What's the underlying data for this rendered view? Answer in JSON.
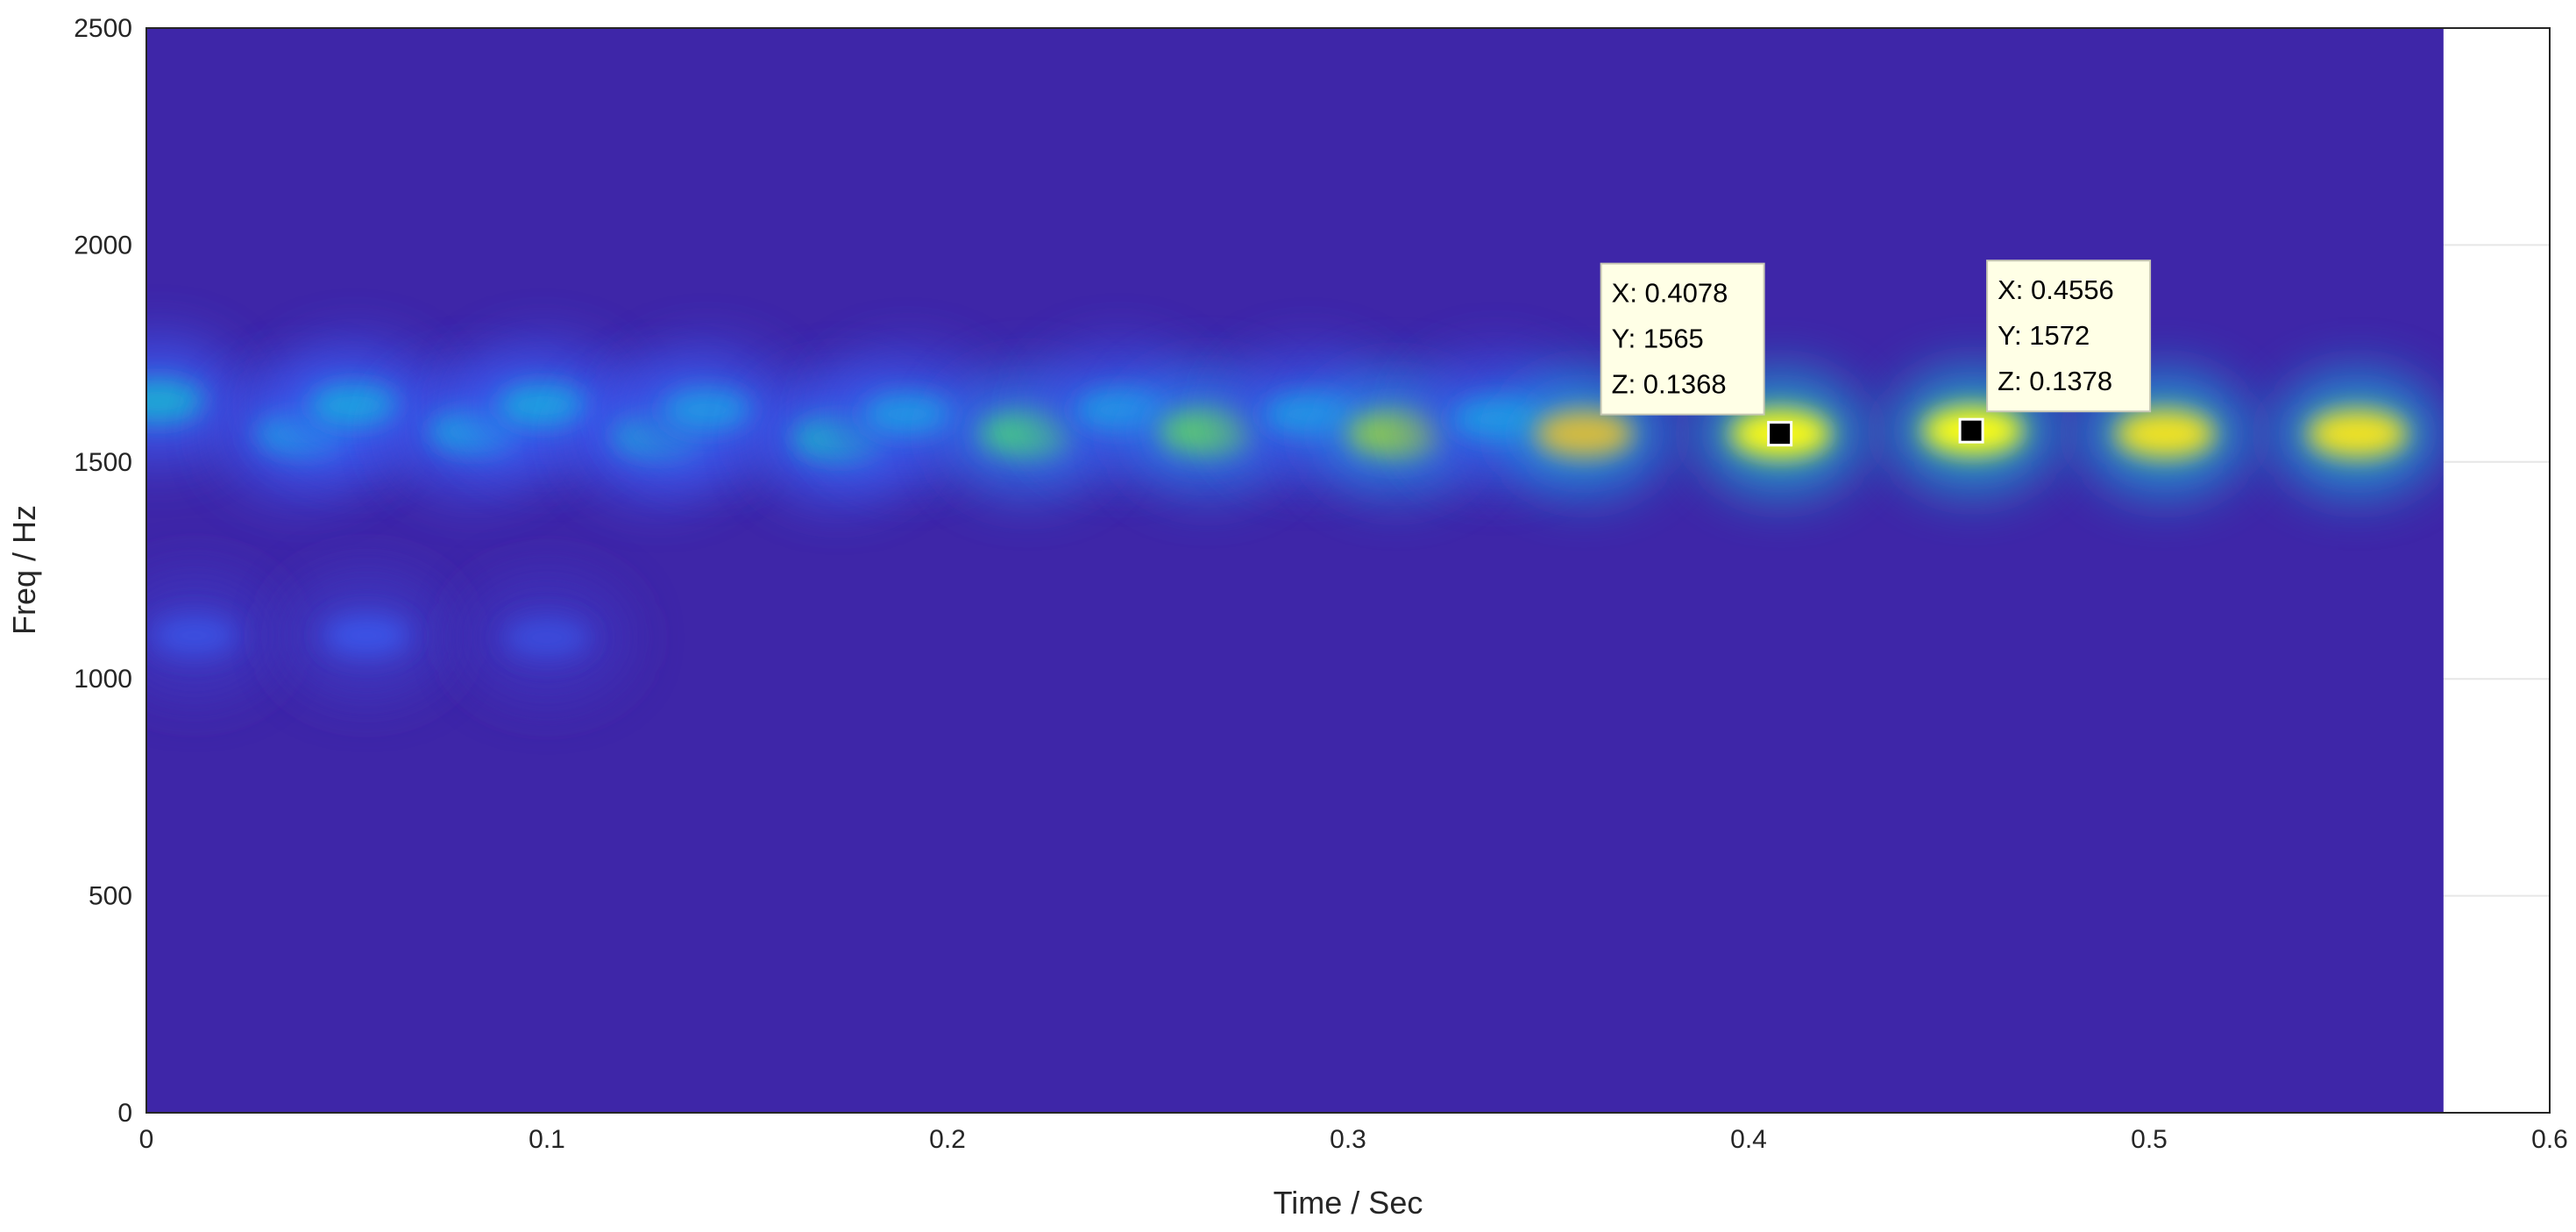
{
  "chart_data": {
    "type": "spectrogram",
    "xlabel": "Time / Sec",
    "ylabel": "Freq / Hz",
    "xlim": [
      0,
      0.6
    ],
    "ylim": [
      0,
      2500
    ],
    "xticks": [
      0,
      0.1,
      0.2,
      0.3,
      0.4,
      0.5,
      0.6
    ],
    "yticks": [
      0,
      500,
      1000,
      1500,
      2000,
      2500
    ],
    "grid": true,
    "background_color": "#3e26a8",
    "x_extent": [
      0,
      0.5735
    ],
    "peaks": {
      "x": [
        0.003,
        0.039,
        0.052,
        0.082,
        0.099,
        0.128,
        0.14,
        0.173,
        0.19,
        0.22,
        0.243,
        0.265,
        0.29,
        0.312,
        0.337,
        0.359,
        0.408,
        0.456,
        0.504,
        0.552,
        0.012,
        0.055,
        0.1
      ],
      "y": [
        1640,
        1565,
        1630,
        1570,
        1630,
        1560,
        1620,
        1555,
        1610,
        1565,
        1620,
        1570,
        1610,
        1565,
        1600,
        1565,
        1565,
        1572,
        1565,
        1565,
        1100,
        1100,
        1095
      ],
      "z": [
        0.06,
        0.055,
        0.055,
        0.055,
        0.055,
        0.06,
        0.05,
        0.065,
        0.05,
        0.085,
        0.05,
        0.09,
        0.05,
        0.1,
        0.05,
        0.115,
        0.1368,
        0.1378,
        0.13,
        0.13,
        0.02,
        0.022,
        0.018
      ]
    },
    "datatips": [
      {
        "x": 0.4078,
        "y": 1565,
        "z": 0.1368,
        "lines": [
          "X: 0.4078",
          "Y: 1565",
          "Z: 0.1368"
        ]
      },
      {
        "x": 0.4556,
        "y": 1572,
        "z": 0.1378,
        "lines": [
          "X: 0.4556",
          "Y: 1572",
          "Z: 0.1378"
        ]
      }
    ]
  }
}
